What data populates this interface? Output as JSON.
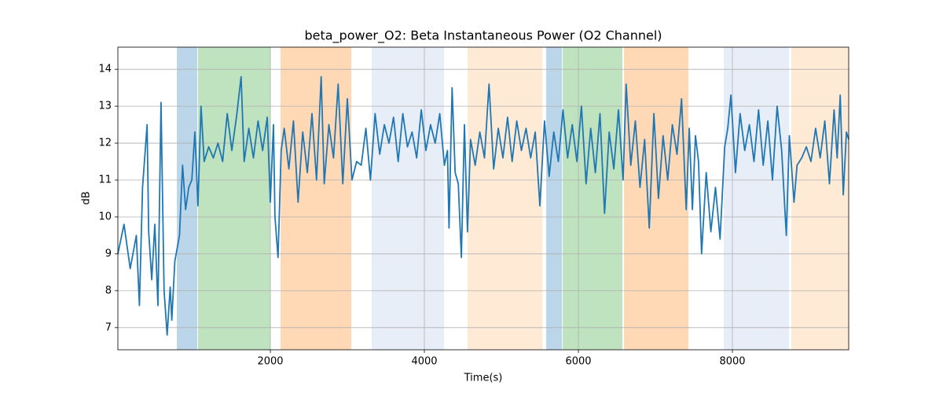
{
  "chart_data": {
    "type": "line",
    "title": "beta_power_O2: Beta Instantaneous Power (O2 Channel)",
    "xlabel": "Time(s)",
    "ylabel": "dB",
    "color": "#1f77b4",
    "grid": true,
    "xlim": [
      20,
      9510
    ],
    "ylim": [
      6.4,
      14.6
    ],
    "xticks": [
      2000,
      4000,
      6000,
      8000
    ],
    "yticks": [
      7,
      8,
      9,
      10,
      11,
      12,
      13,
      14
    ],
    "spans": [
      {
        "start": 786,
        "end": 1051,
        "color": "rgba(31,119,180,0.3)"
      },
      {
        "start": 1061,
        "end": 2000,
        "color": "rgba(44,160,44,0.3)"
      },
      {
        "start": 2133,
        "end": 3051,
        "color": "rgba(255,127,14,0.3)"
      },
      {
        "start": 3316,
        "end": 4255,
        "color": "rgba(174,199,232,0.3)"
      },
      {
        "start": 4561,
        "end": 5531,
        "color": "rgba(255,187,120,0.3)"
      },
      {
        "start": 5582,
        "end": 5786,
        "color": "rgba(31,119,180,0.3)"
      },
      {
        "start": 5796,
        "end": 6571,
        "color": "rgba(44,160,44,0.3)"
      },
      {
        "start": 6592,
        "end": 7429,
        "color": "rgba(255,127,14,0.3)"
      },
      {
        "start": 7888,
        "end": 8735,
        "color": "rgba(174,199,232,0.3)"
      },
      {
        "start": 8765,
        "end": 9510,
        "color": "rgba(255,187,120,0.3)"
      }
    ],
    "x": [
      20,
      100,
      180,
      260,
      300,
      340,
      400,
      420,
      460,
      500,
      540,
      580,
      620,
      660,
      700,
      720,
      760,
      820,
      860,
      900,
      940,
      980,
      1020,
      1060,
      1100,
      1140,
      1200,
      1260,
      1320,
      1380,
      1440,
      1500,
      1560,
      1620,
      1660,
      1720,
      1780,
      1840,
      1900,
      1960,
      2000,
      2040,
      2060,
      2100,
      2140,
      2180,
      2240,
      2300,
      2360,
      2420,
      2480,
      2540,
      2600,
      2660,
      2700,
      2760,
      2820,
      2880,
      2940,
      3000,
      3060,
      3120,
      3180,
      3240,
      3300,
      3360,
      3420,
      3480,
      3540,
      3600,
      3660,
      3720,
      3780,
      3840,
      3900,
      3960,
      4020,
      4080,
      4140,
      4200,
      4260,
      4300,
      4320,
      4360,
      4400,
      4440,
      4480,
      4520,
      4560,
      4600,
      4660,
      4720,
      4780,
      4840,
      4900,
      4960,
      5020,
      5080,
      5140,
      5200,
      5260,
      5320,
      5380,
      5440,
      5500,
      5560,
      5620,
      5680,
      5740,
      5800,
      5860,
      5920,
      5980,
      6040,
      6100,
      6160,
      6220,
      6280,
      6340,
      6400,
      6460,
      6520,
      6580,
      6620,
      6680,
      6740,
      6800,
      6860,
      6920,
      6980,
      7040,
      7100,
      7160,
      7220,
      7280,
      7340,
      7400,
      7440,
      7480,
      7520,
      7560,
      7600,
      7660,
      7720,
      7780,
      7840,
      7900,
      7940,
      7980,
      8040,
      8100,
      8160,
      8220,
      8280,
      8340,
      8400,
      8460,
      8520,
      8580,
      8640,
      8700,
      8740,
      8800,
      8840,
      8900,
      8960,
      9020,
      9080,
      9140,
      9200,
      9260,
      9320,
      9360,
      9400,
      9440,
      9480,
      9510
    ],
    "values": [
      9.0,
      9.8,
      8.6,
      9.5,
      7.6,
      10.8,
      12.5,
      9.6,
      8.3,
      9.8,
      7.6,
      13.1,
      8.0,
      6.8,
      8.1,
      7.2,
      8.8,
      9.5,
      11.4,
      10.2,
      10.8,
      11.0,
      12.3,
      10.3,
      13.0,
      11.5,
      11.9,
      11.6,
      12.0,
      11.5,
      12.8,
      11.8,
      12.7,
      13.8,
      11.5,
      12.4,
      11.6,
      12.6,
      11.8,
      12.7,
      10.4,
      12.5,
      10.0,
      8.9,
      11.8,
      12.4,
      11.3,
      12.6,
      10.4,
      12.3,
      11.2,
      12.8,
      11.0,
      13.8,
      10.9,
      12.5,
      11.6,
      13.6,
      10.9,
      13.2,
      11.0,
      11.5,
      11.4,
      12.4,
      11.0,
      12.8,
      11.7,
      12.5,
      12.0,
      12.7,
      11.5,
      12.8,
      11.9,
      12.3,
      11.6,
      12.9,
      11.8,
      12.5,
      12.0,
      12.8,
      11.4,
      11.8,
      9.7,
      13.5,
      11.2,
      10.9,
      8.9,
      12.5,
      9.6,
      12.1,
      11.4,
      12.3,
      11.6,
      13.6,
      11.3,
      12.4,
      11.6,
      12.7,
      11.5,
      12.6,
      11.8,
      12.4,
      11.6,
      12.3,
      10.3,
      12.6,
      11.1,
      12.3,
      11.5,
      12.9,
      11.6,
      12.5,
      11.5,
      13.0,
      10.9,
      12.4,
      11.2,
      12.8,
      10.1,
      12.3,
      11.3,
      12.9,
      11.0,
      13.6,
      11.4,
      12.6,
      10.8,
      12.1,
      9.7,
      12.8,
      10.5,
      12.2,
      11.0,
      12.5,
      11.7,
      13.2,
      10.2,
      12.4,
      10.2,
      12.2,
      11.5,
      9.0,
      11.2,
      9.6,
      10.8,
      9.4,
      11.9,
      12.4,
      13.3,
      11.2,
      12.8,
      11.8,
      12.5,
      11.5,
      12.9,
      11.4,
      12.6,
      11.0,
      13.0,
      11.8,
      9.5,
      12.2,
      10.4,
      11.4,
      11.6,
      11.9,
      11.5,
      12.4,
      11.6,
      12.6,
      10.9,
      12.9,
      11.6,
      13.3,
      10.6,
      12.3,
      12.1
    ]
  }
}
